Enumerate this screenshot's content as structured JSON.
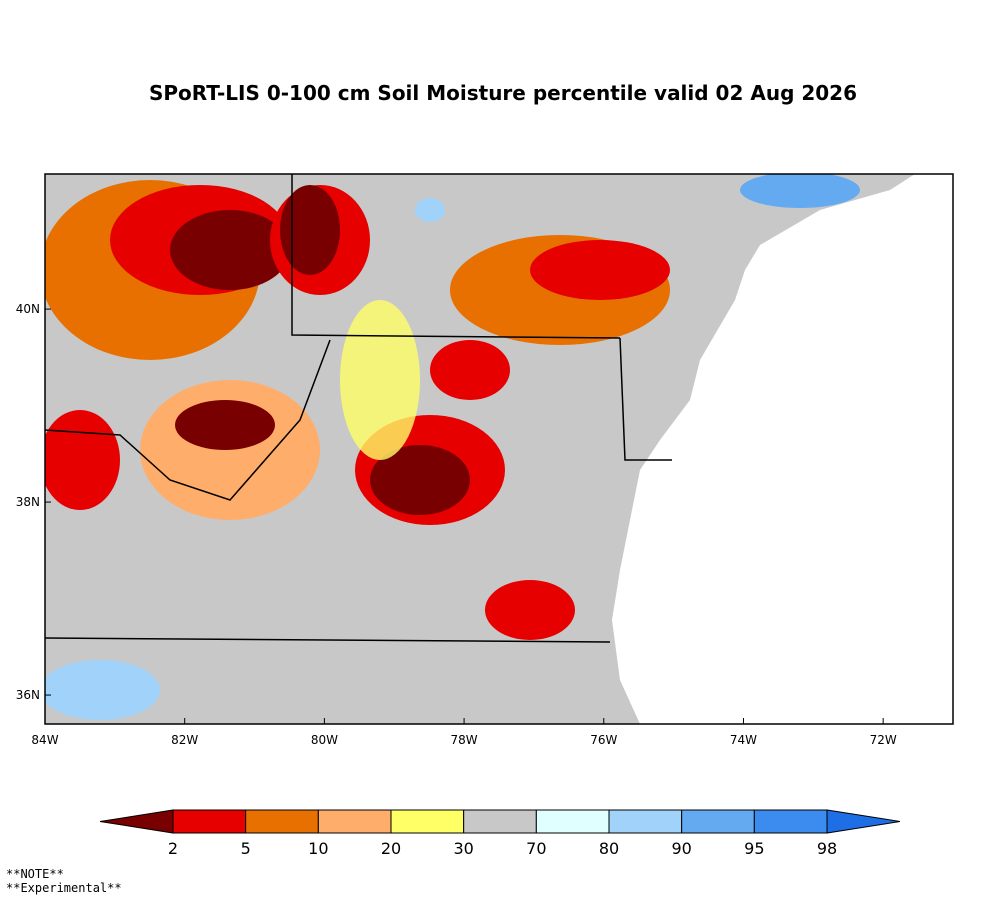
{
  "title": "SPoRT-LIS 0-100 cm Soil Moisture percentile valid 02 Aug 2026",
  "map": {
    "lon_lim": [
      -84,
      -71
    ],
    "lat_lim": [
      35.7,
      41.4
    ],
    "lon_ticks": [
      {
        "value": -84,
        "label": "84W"
      },
      {
        "value": -82,
        "label": "82W"
      },
      {
        "value": -80,
        "label": "80W"
      },
      {
        "value": -78,
        "label": "78W"
      },
      {
        "value": -76,
        "label": "76W"
      },
      {
        "value": -74,
        "label": "74W"
      },
      {
        "value": -72,
        "label": "72W"
      }
    ],
    "lat_ticks": [
      {
        "value": 36,
        "label": "36N"
      },
      {
        "value": 38,
        "label": "38N"
      },
      {
        "value": 40,
        "label": "40N"
      }
    ]
  },
  "colorbar": {
    "boundaries": [
      2,
      5,
      10,
      20,
      30,
      70,
      80,
      90,
      95,
      98
    ],
    "colors": [
      "#780000",
      "#e60000",
      "#e87000",
      "#ffad6a",
      "#ffff66",
      "#c8c8c8",
      "#e0ffff",
      "#a0d2fa",
      "#64aaf0",
      "#3c8cf0",
      "#1e6ee6"
    ]
  },
  "notes": [
    "**NOTE**",
    "**Experimental**"
  ]
}
